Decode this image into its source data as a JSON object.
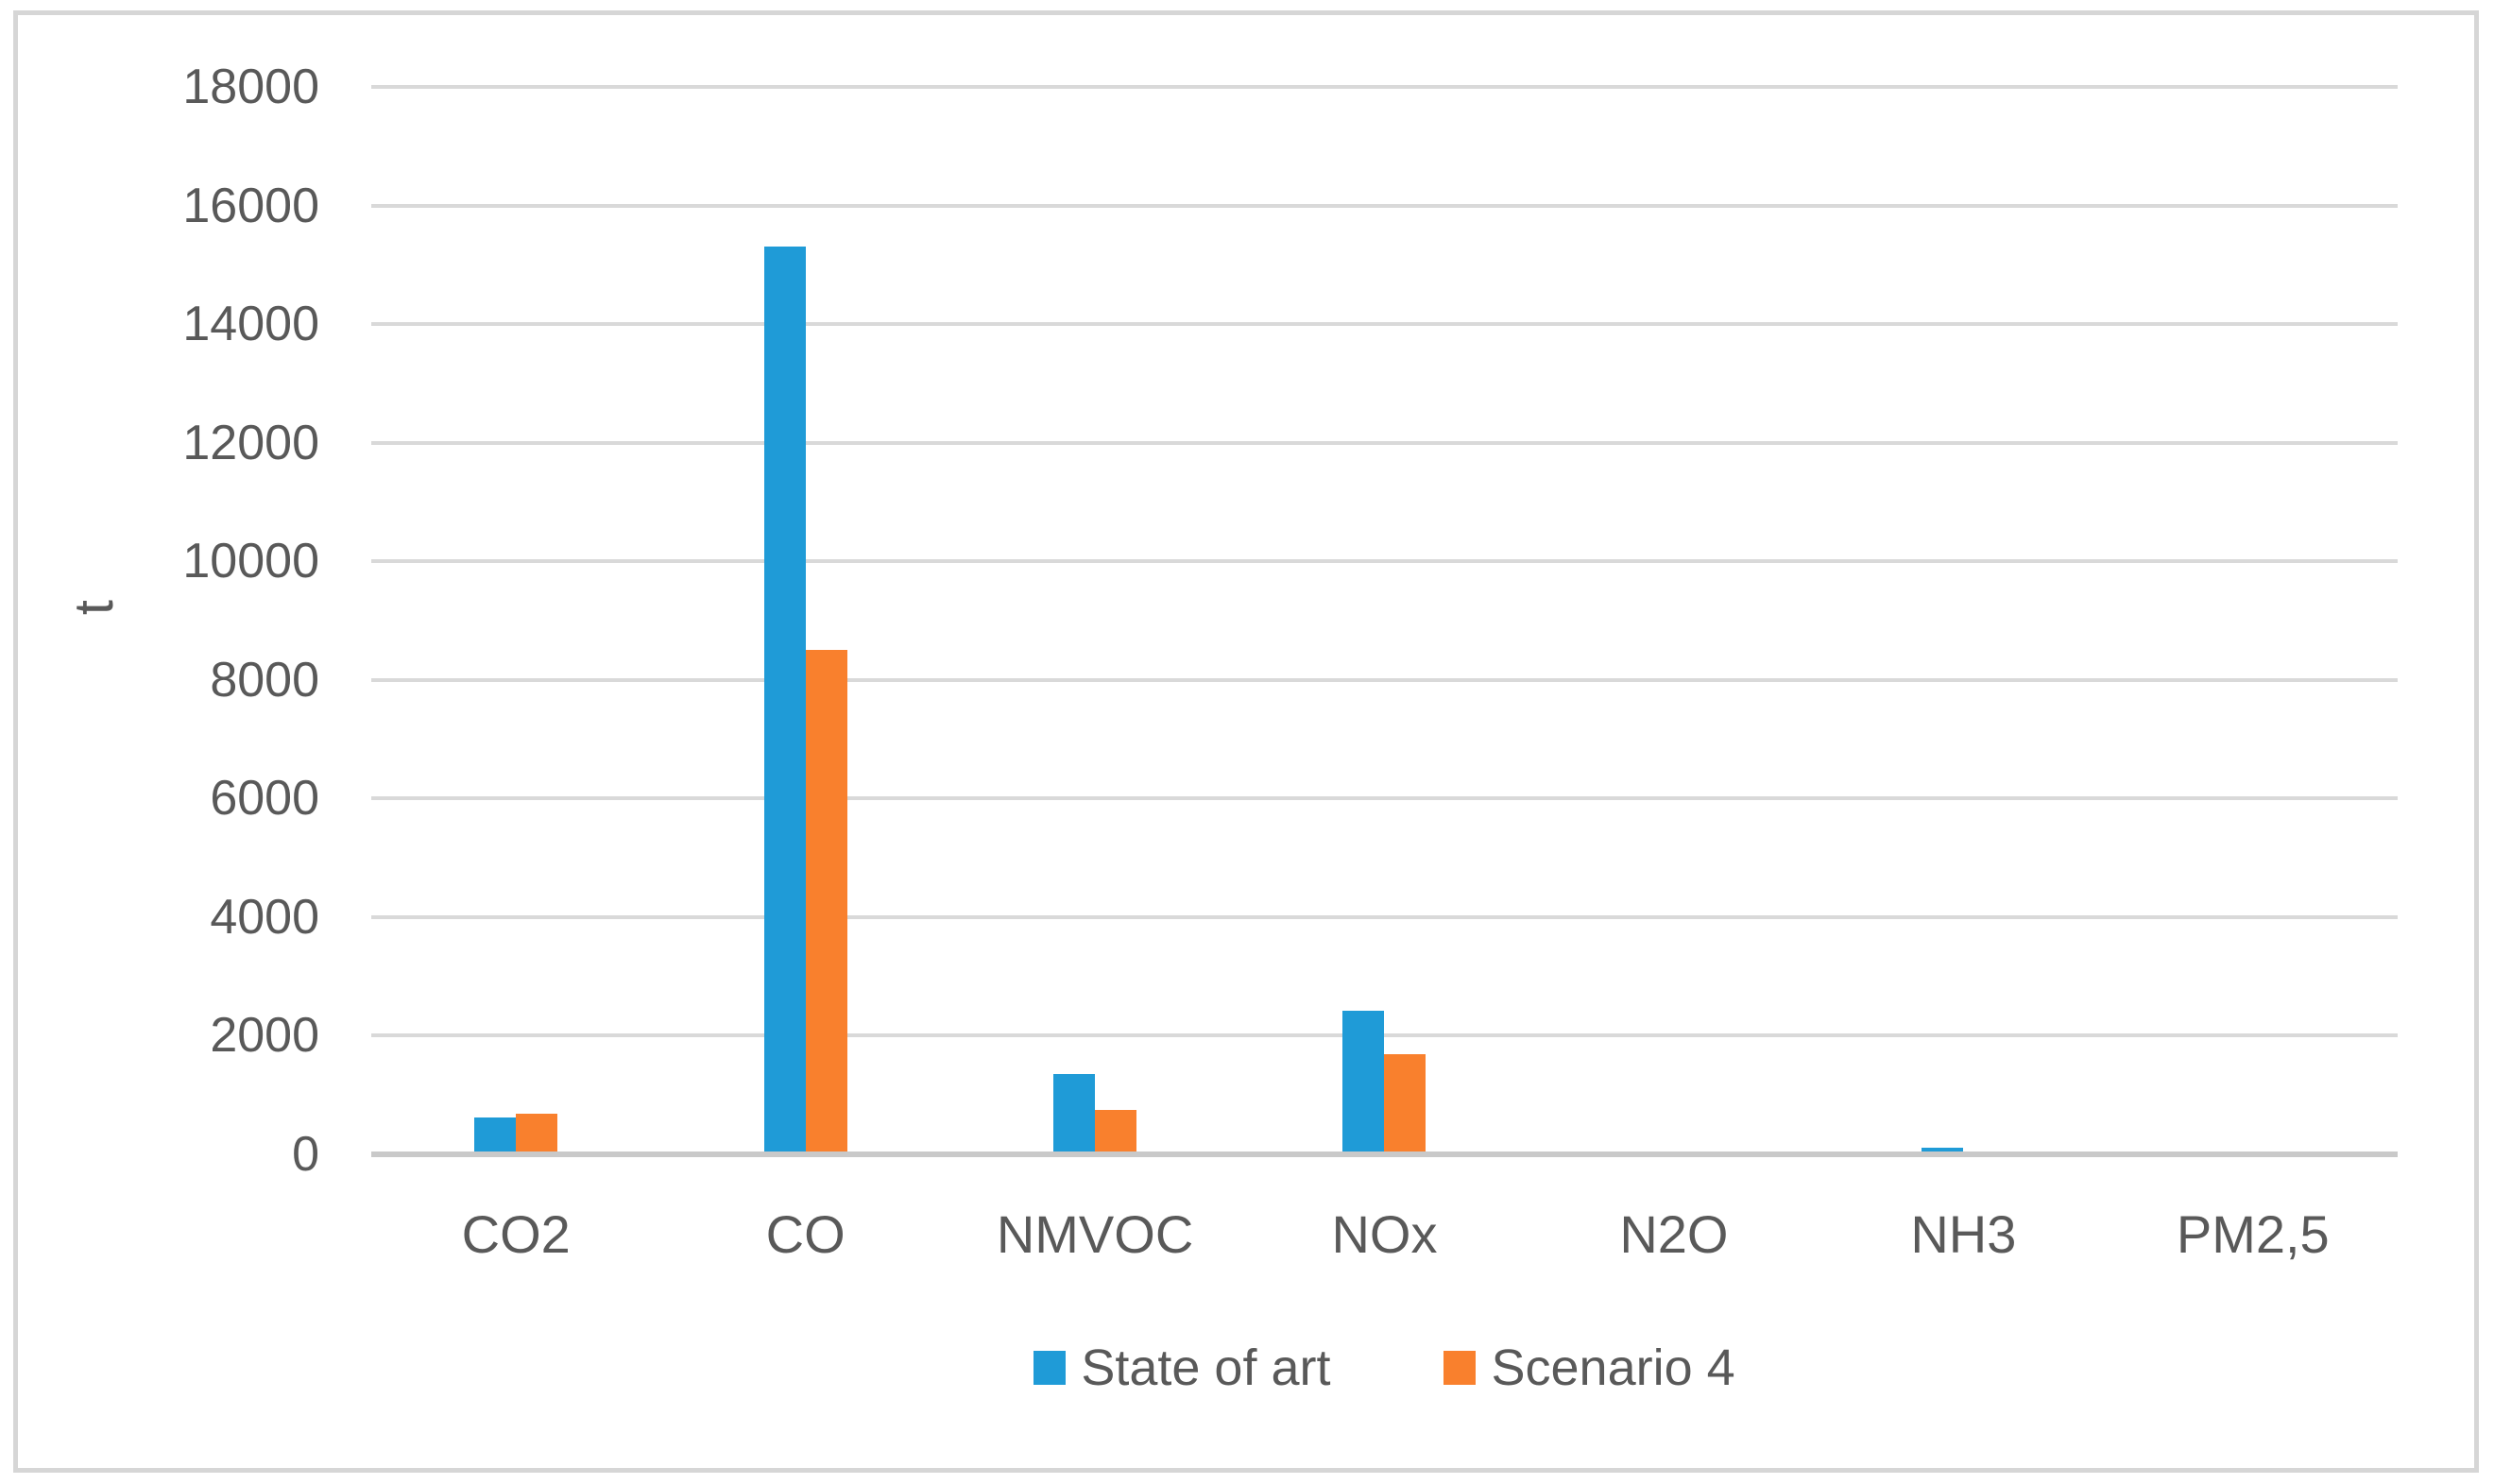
{
  "chart_data": {
    "type": "bar",
    "title": "",
    "xlabel": "",
    "ylabel": "t",
    "categories": [
      "CO2",
      "CO",
      "NMVOC",
      "NOx",
      "N2O",
      "NH3",
      "PM2,5"
    ],
    "series": [
      {
        "name": "State of art",
        "color": "#1f9bd7",
        "values": [
          620,
          15300,
          1360,
          2420,
          0,
          110,
          0
        ]
      },
      {
        "name": "Scenario 4",
        "color": "#f9802d",
        "values": [
          690,
          8500,
          750,
          1690,
          0,
          0,
          0
        ]
      }
    ],
    "ylim": [
      0,
      18000
    ],
    "ytick_step": 2000,
    "ytick_labels": [
      "0",
      "2000",
      "4000",
      "6000",
      "8000",
      "10000",
      "12000",
      "14000",
      "16000",
      "18000"
    ],
    "grid": true,
    "legend_position": "bottom"
  },
  "colors": {
    "text": "#595959",
    "gridline": "#d9d9d9",
    "axis_line": "#c9c9c9",
    "border": "#d6d6d6",
    "background": "#ffffff"
  }
}
